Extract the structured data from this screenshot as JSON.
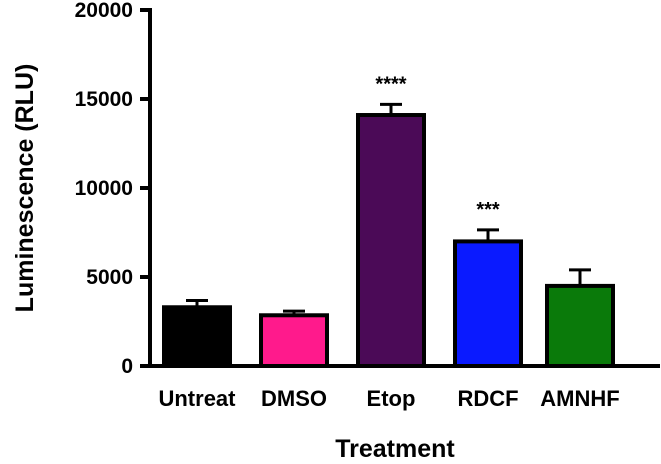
{
  "chart_data": {
    "type": "bar",
    "categories": [
      "Untreat",
      "DMSO",
      "Etop",
      "RDCF",
      "AMNHF"
    ],
    "values": [
      3300,
      2850,
      14100,
      7000,
      4500
    ],
    "errors": [
      380,
      230,
      600,
      650,
      900
    ],
    "colors": [
      "#000000",
      "#ff1a8c",
      "#4b0a57",
      "#0a1aff",
      "#0a7a0a"
    ],
    "significance": [
      "",
      "",
      "****",
      "***",
      ""
    ],
    "xlabel": "Treatment",
    "ylabel": "Luminescence (RLU)",
    "ylim": [
      0,
      20000
    ],
    "yticks": [
      0,
      5000,
      10000,
      15000,
      20000
    ],
    "ytick_labels": [
      "0",
      "5000",
      "10000",
      "15000",
      "20000"
    ],
    "grid": false,
    "legend": "none"
  }
}
